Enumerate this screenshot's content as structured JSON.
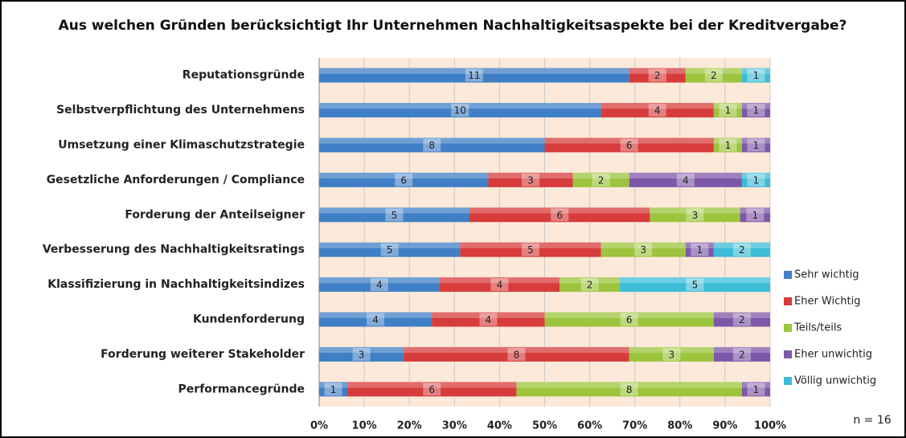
{
  "chart_data": {
    "type": "bar",
    "orientation": "horizontal",
    "stacked": "percent",
    "title": "Aus welchen Gründen berücksichtigt  Ihr Unternehmen Nachhaltigkeitsaspekte bei der Kreditvergabe?",
    "annotation": "n = 16",
    "categories": [
      "Reputationsgründe",
      "Selbstverpflichtung des Unternehmens",
      "Umsetzung einer Klimaschutzstrategie",
      "Gesetzliche Anforderungen / Compliance",
      "Forderung der Anteilseigner",
      "Verbesserung des Nachhaltigkeitsratings",
      "Klassifizierung in Nachhaltigkeitsindizes",
      "Kundenforderung",
      "Forderung weiterer Stakeholder",
      "Performancegründe"
    ],
    "series": [
      {
        "name": "Sehr wichtig",
        "color": "#3f7fc6",
        "values": [
          11,
          10,
          8,
          6,
          5,
          5,
          4,
          4,
          3,
          1
        ]
      },
      {
        "name": "Eher Wichtig",
        "color": "#d73b3b",
        "values": [
          2,
          4,
          6,
          3,
          6,
          5,
          4,
          4,
          8,
          6
        ]
      },
      {
        "name": "Teils/teils",
        "color": "#9cc43d",
        "values": [
          2,
          1,
          1,
          2,
          3,
          3,
          2,
          6,
          3,
          8
        ]
      },
      {
        "name": "Eher unwichtig",
        "color": "#7e58a8",
        "values": [
          null,
          1,
          1,
          4,
          1,
          1,
          null,
          2,
          2,
          1
        ]
      },
      {
        "name": "Völlig unwichtig",
        "color": "#3cbcd6",
        "values": [
          1,
          null,
          null,
          1,
          null,
          2,
          5,
          null,
          null,
          null
        ]
      }
    ],
    "xlim": [
      0,
      100
    ],
    "xticks": [
      {
        "value": 0,
        "label": "0%"
      },
      {
        "value": 10,
        "label": "10%"
      },
      {
        "value": 20,
        "label": "20%"
      },
      {
        "value": 30,
        "label": "30%"
      },
      {
        "value": 40,
        "label": "40%"
      },
      {
        "value": 50,
        "label": "50%"
      },
      {
        "value": 60,
        "label": "60%"
      },
      {
        "value": 70,
        "label": "70%"
      },
      {
        "value": 80,
        "label": "80%"
      },
      {
        "value": 90,
        "label": "90%"
      },
      {
        "value": 100,
        "label": "100%"
      }
    ],
    "grid": true,
    "legend": "right"
  }
}
